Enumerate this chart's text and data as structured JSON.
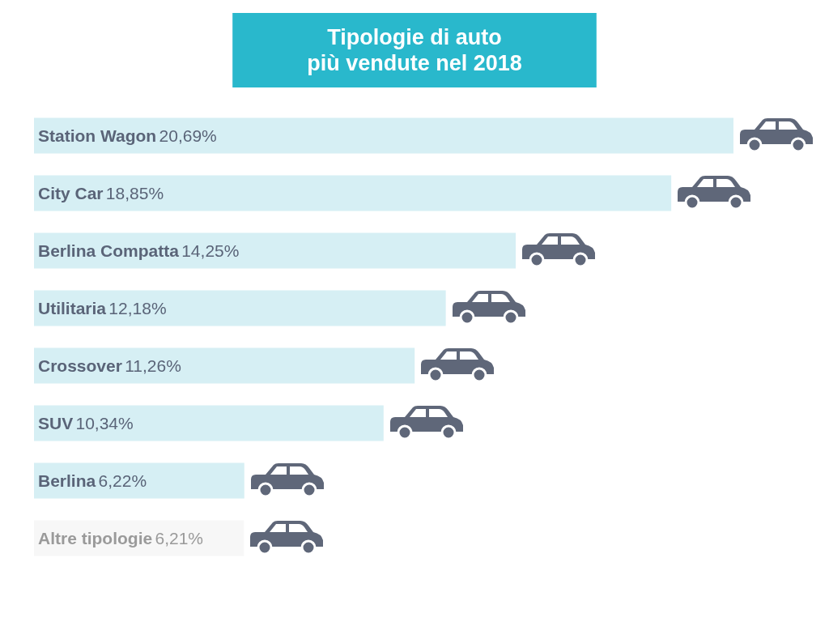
{
  "chart_data": {
    "type": "bar",
    "orientation": "horizontal",
    "title": "Tipologie di auto\npiù vendute nel 2018",
    "categories": [
      "Station Wagon",
      "City Car",
      "Berlina Compatta",
      "Utilitaria",
      "Crossover",
      "SUV",
      "Berlina",
      "Altre tipologie"
    ],
    "values": [
      20.69,
      18.85,
      14.25,
      12.18,
      11.26,
      10.34,
      6.22,
      6.21
    ],
    "value_labels": [
      "20,69%",
      "18,85%",
      "14,25%",
      "12,18%",
      "11,26%",
      "10,34%",
      "6,22%",
      "6,21%"
    ],
    "colors": [
      "#d6eff4",
      "#d6eff4",
      "#d6eff4",
      "#d6eff4",
      "#d6eff4",
      "#d6eff4",
      "#d6eff4",
      "#f7f7f7"
    ],
    "tick_labels": false
  }
}
